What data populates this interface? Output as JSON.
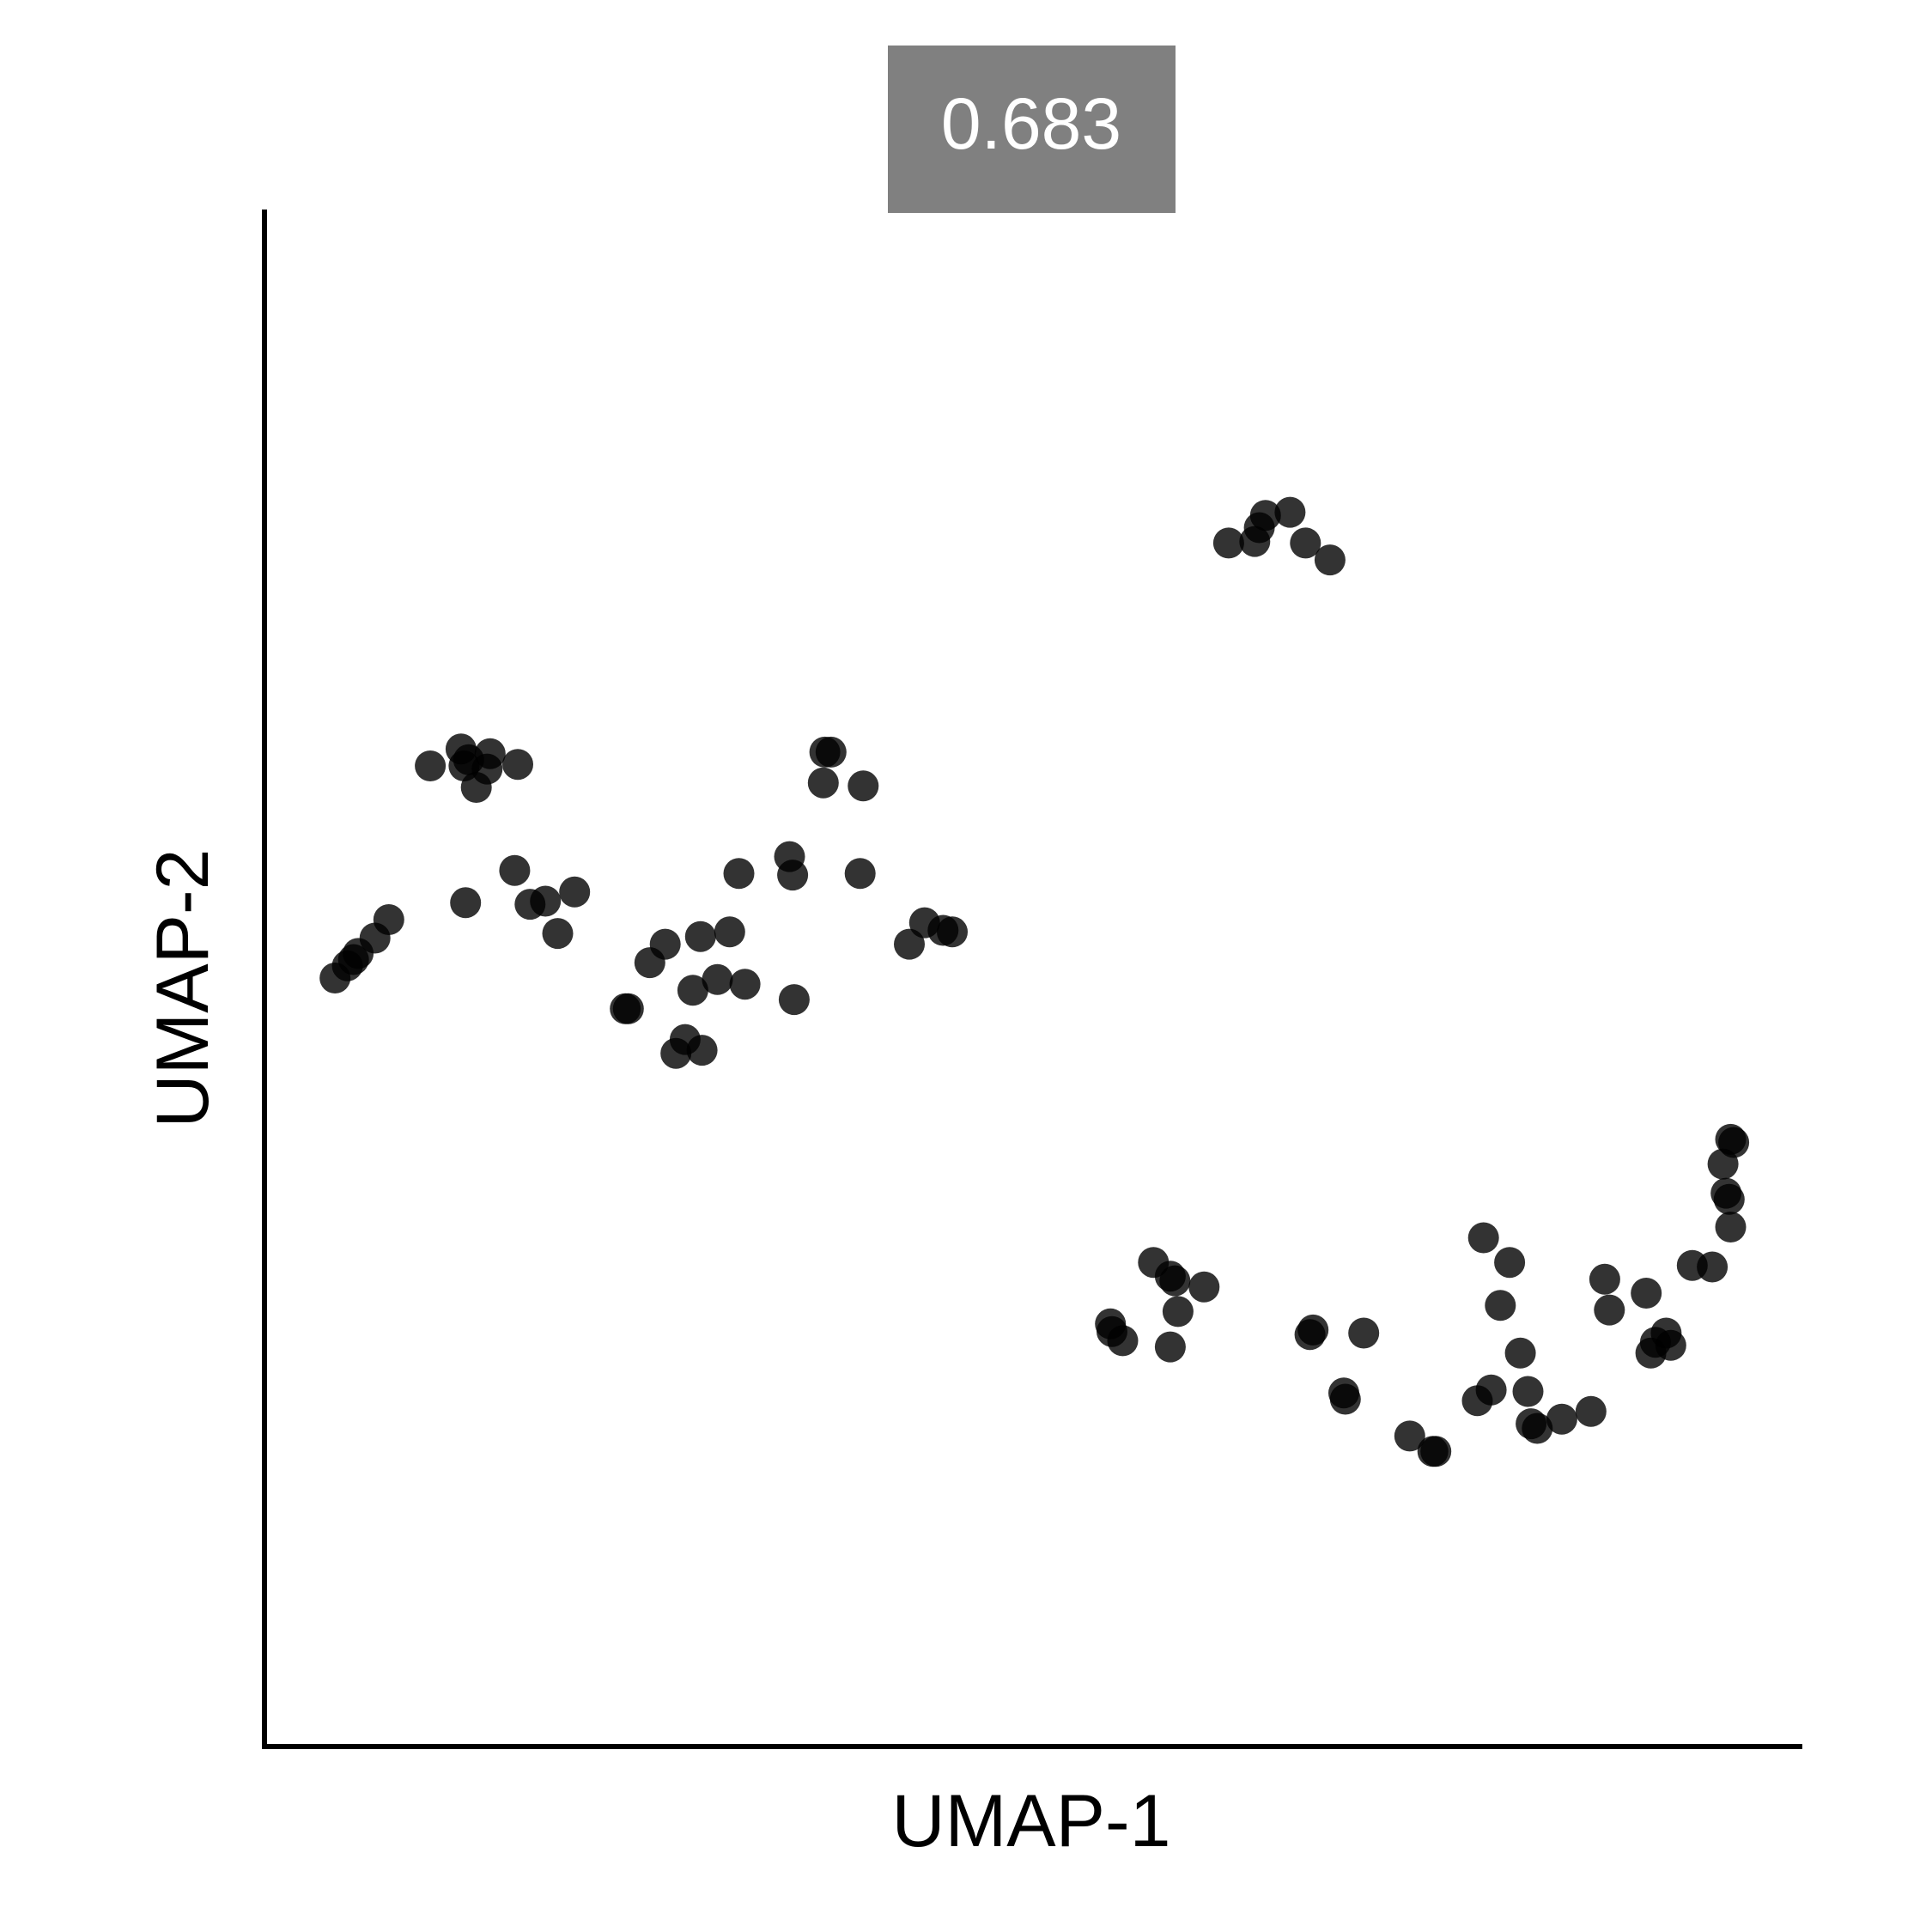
{
  "chart_data": {
    "type": "scatter",
    "title": "0.683",
    "xlabel": "UMAP-1",
    "ylabel": "UMAP-2",
    "xlim": [
      0,
      100
    ],
    "ylim": [
      0,
      100
    ],
    "grid": false,
    "legend": "none",
    "colors": {
      "point": "#000000",
      "badge_bg": "#808080",
      "badge_text": "#ffffff"
    },
    "x": [
      4.6,
      5.4,
      5.8,
      6.1,
      7.2,
      8.1,
      10.8,
      12.8,
      13.0,
      13.3,
      13.8,
      14.7,
      14.5,
      16.5,
      18.3,
      13.1,
      16.3,
      17.3,
      19.1,
      20.2,
      23.7,
      23.5,
      25.1,
      26.1,
      27.4,
      26.8,
      28.5,
      27.9,
      29.5,
      30.3,
      31.3,
      28.4,
      30.9,
      34.4,
      34.5,
      36.5,
      36.9,
      34.2,
      36.4,
      39.0,
      38.8,
      42.0,
      43.0,
      44.2,
      44.8,
      62.8,
      64.5,
      64.8,
      65.2,
      66.8,
      67.8,
      69.4,
      55.1,
      55.2,
      55.9,
      57.9,
      59.0,
      59.3,
      59.0,
      61.2,
      59.5,
      68.1,
      68.3,
      71.6,
      70.3,
      70.4,
      74.6,
      76.1,
      76.3,
      79.0,
      79.9,
      79.4,
      81.1,
      80.5,
      81.8,
      82.3,
      82.5,
      82.9,
      84.5,
      86.4,
      87.6,
      87.3,
      90.3,
      90.6,
      91.3,
      90.0,
      91.6,
      93.0,
      94.3,
      95.5,
      95.2,
      95.4,
      95.0,
      95.7,
      95.5
    ],
    "y": [
      50.0,
      50.8,
      51.2,
      51.6,
      52.6,
      53.8,
      63.8,
      64.9,
      63.8,
      64.2,
      62.4,
      64.6,
      63.6,
      63.9,
      55.0,
      54.9,
      57.0,
      54.8,
      52.9,
      55.6,
      48.0,
      48.0,
      51.0,
      52.2,
      46.0,
      45.1,
      45.3,
      49.2,
      49.9,
      53.0,
      49.6,
      52.7,
      56.8,
      56.7,
      48.6,
      64.7,
      64.7,
      57.9,
      62.7,
      62.5,
      56.8,
      52.2,
      53.6,
      53.1,
      53.0,
      78.3,
      78.4,
      79.3,
      80.1,
      80.3,
      78.3,
      77.2,
      27.5,
      27.0,
      26.4,
      31.5,
      30.6,
      30.3,
      26.0,
      29.9,
      28.3,
      26.8,
      27.1,
      26.9,
      23.0,
      22.6,
      20.2,
      19.2,
      19.2,
      22.5,
      23.2,
      33.1,
      31.5,
      28.7,
      25.6,
      23.1,
      21.0,
      20.7,
      21.3,
      21.8,
      28.4,
      30.4,
      25.6,
      26.3,
      26.9,
      29.5,
      26.1,
      31.3,
      31.2,
      33.8,
      36.0,
      35.6,
      37.9,
      39.3,
      39.5
    ]
  }
}
